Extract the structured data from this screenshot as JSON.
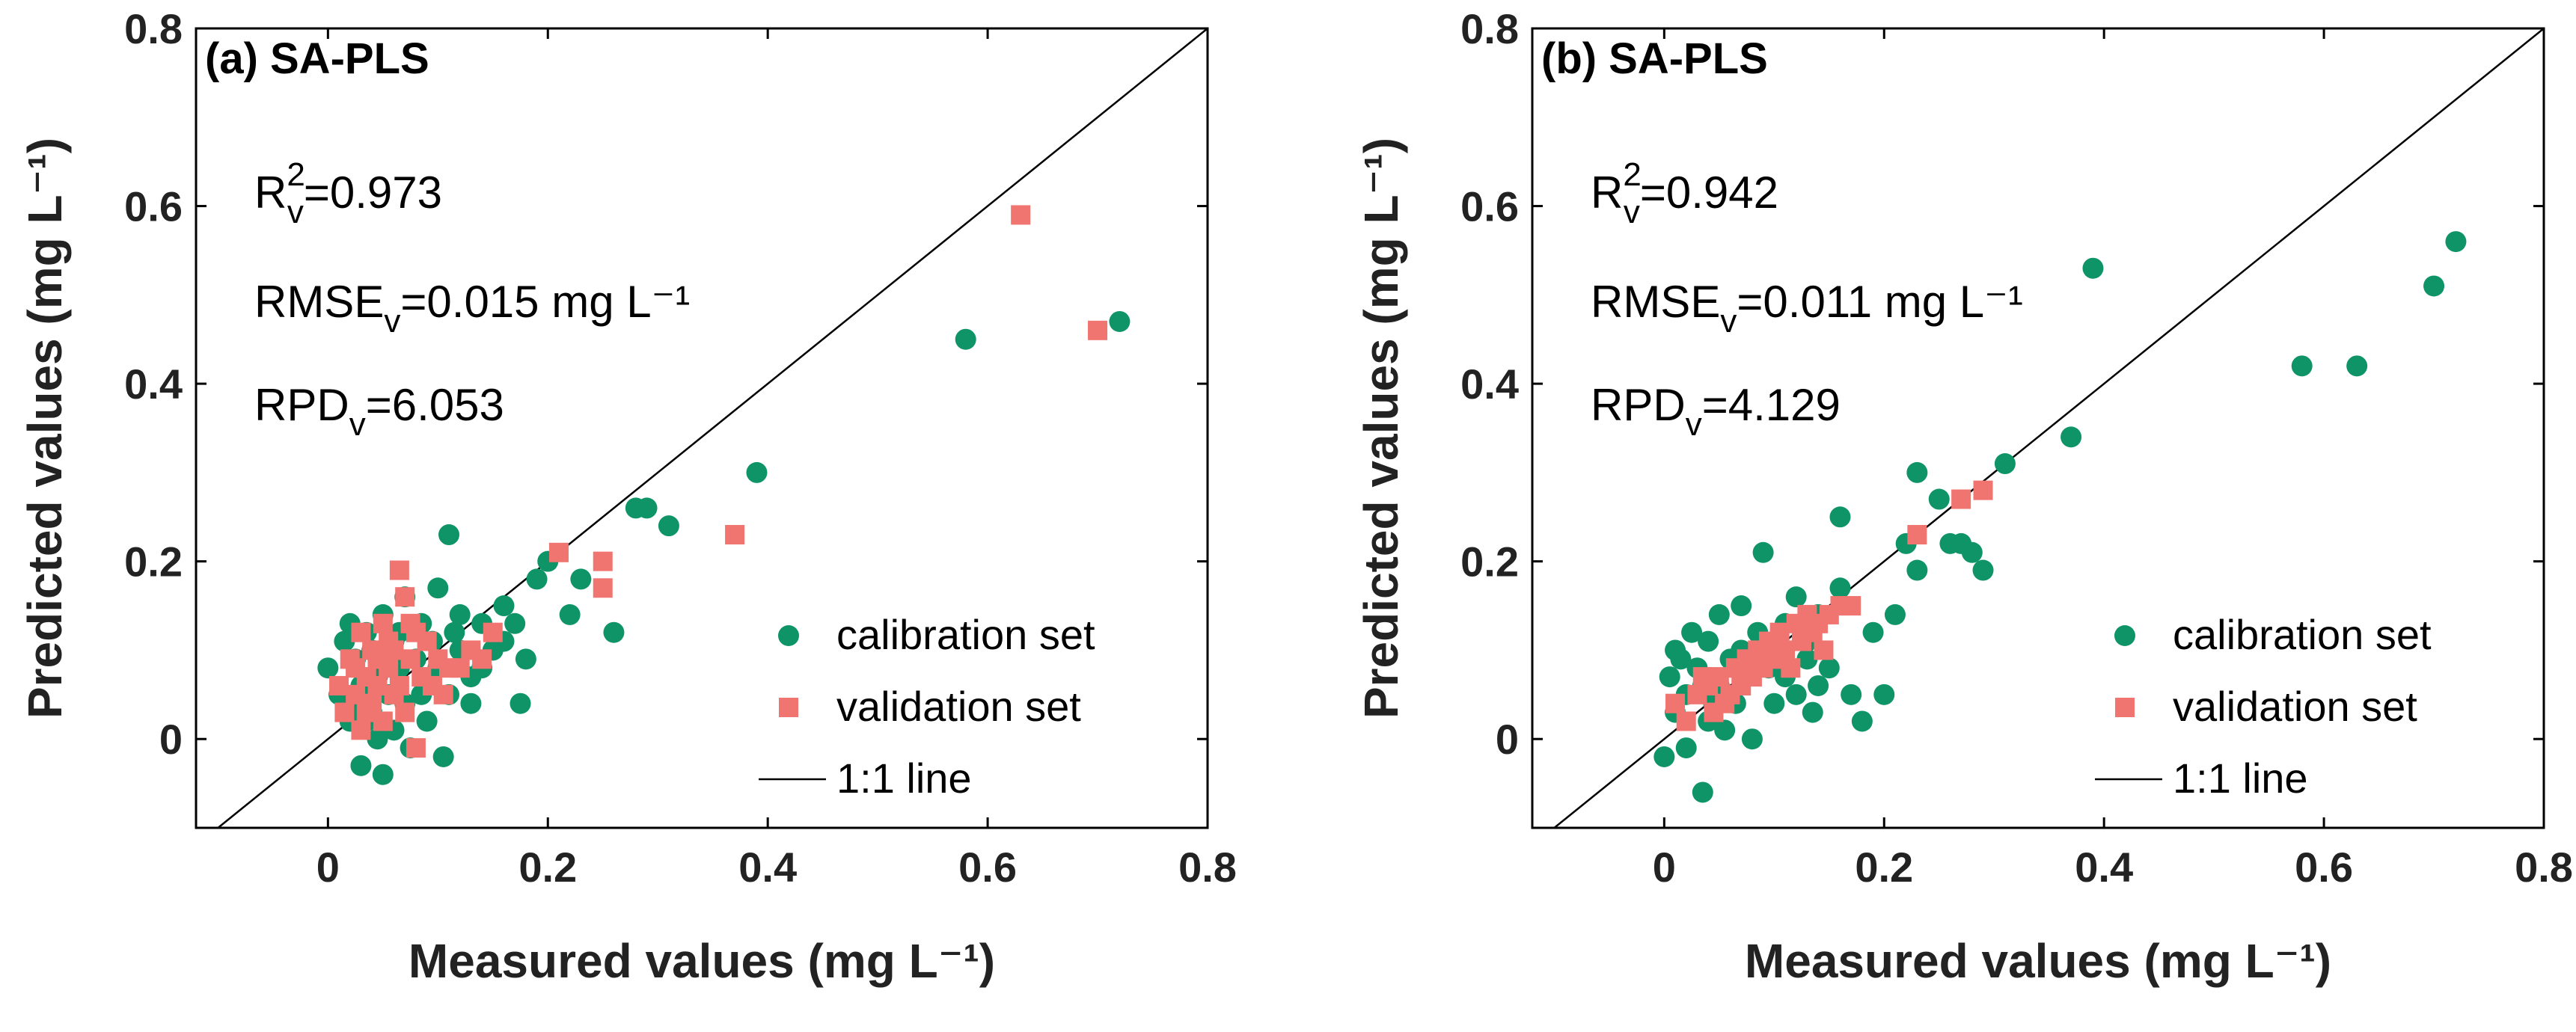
{
  "colors": {
    "calibration": "#0f9467",
    "validation": "#f07470",
    "line": "#000000",
    "frame": "#000000"
  },
  "chart_data": [
    {
      "type": "scatter",
      "title": "(a) SA-PLS",
      "xlabel": "Measured values (mg L⁻¹)",
      "ylabel": "Predicted values (mg L⁻¹)",
      "xlim": [
        -0.12,
        0.8
      ],
      "ylim": [
        -0.1,
        0.8
      ],
      "xticks": [
        0,
        0.2,
        0.4,
        0.6,
        0.8
      ],
      "yticks": [
        0,
        0.2,
        0.4,
        0.6,
        0.8
      ],
      "xtick_labels": [
        "0",
        "0.2",
        "0.4",
        "0.6",
        "0.8"
      ],
      "ytick_labels": [
        "0",
        "0.2",
        "0.4",
        "0.6",
        "0.8"
      ],
      "stats": {
        "r2_main": "R",
        "r2_sup": "2",
        "r2_sub": "v",
        "r2_value": "=0.973",
        "rmse_main": "RMSE",
        "rmse_sub": "v",
        "rmse_value": "=0.015 mg L⁻¹",
        "rpd_main": "RPD",
        "rpd_sub": "v",
        "rpd_value": "=6.053"
      },
      "legend": [
        "calibration set",
        "validation set",
        "1:1 line"
      ],
      "series": [
        {
          "name": "calibration set",
          "marker": "circle",
          "points": [
            [
              0.0,
              0.08
            ],
            [
              0.01,
              0.05
            ],
            [
              0.015,
              0.11
            ],
            [
              0.02,
              0.02
            ],
            [
              0.02,
              0.13
            ],
            [
              0.025,
              0.09
            ],
            [
              0.03,
              0.06
            ],
            [
              0.03,
              -0.03
            ],
            [
              0.035,
              0.12
            ],
            [
              0.04,
              0.03
            ],
            [
              0.04,
              0.1
            ],
            [
              0.045,
              0.07
            ],
            [
              0.05,
              -0.04
            ],
            [
              0.05,
              0.14
            ],
            [
              0.055,
              0.05
            ],
            [
              0.06,
              0.01
            ],
            [
              0.06,
              0.11
            ],
            [
              0.065,
              0.08
            ],
            [
              0.07,
              0.04
            ],
            [
              0.07,
              0.16
            ],
            [
              0.075,
              -0.01
            ],
            [
              0.08,
              0.09
            ],
            [
              0.085,
              0.13
            ],
            [
              0.09,
              0.06
            ],
            [
              0.09,
              0.02
            ],
            [
              0.095,
              0.11
            ],
            [
              0.1,
              0.17
            ],
            [
              0.1,
              0.08
            ],
            [
              0.105,
              -0.02
            ],
            [
              0.11,
              0.05
            ],
            [
              0.11,
              0.23
            ],
            [
              0.115,
              0.12
            ],
            [
              0.12,
              0.1
            ],
            [
              0.12,
              0.14
            ],
            [
              0.13,
              0.07
            ],
            [
              0.13,
              0.04
            ],
            [
              0.14,
              0.13
            ],
            [
              0.15,
              0.1
            ],
            [
              0.16,
              0.15
            ],
            [
              0.17,
              0.13
            ],
            [
              0.175,
              0.04
            ],
            [
              0.18,
              0.09
            ],
            [
              0.19,
              0.18
            ],
            [
              0.2,
              0.2
            ],
            [
              0.22,
              0.14
            ],
            [
              0.23,
              0.18
            ],
            [
              0.26,
              0.12
            ],
            [
              0.28,
              0.26
            ],
            [
              0.29,
              0.26
            ],
            [
              0.31,
              0.24
            ],
            [
              0.39,
              0.3
            ],
            [
              0.58,
              0.45
            ],
            [
              0.72,
              0.47
            ],
            [
              0.035,
              0.02
            ],
            [
              0.045,
              0.0
            ],
            [
              0.025,
              0.04
            ],
            [
              0.065,
              0.12
            ],
            [
              0.085,
              0.05
            ],
            [
              0.14,
              0.08
            ],
            [
              0.16,
              0.11
            ]
          ]
        },
        {
          "name": "validation set",
          "marker": "square",
          "points": [
            [
              0.01,
              0.06
            ],
            [
              0.015,
              0.03
            ],
            [
              0.02,
              0.09
            ],
            [
              0.025,
              0.05
            ],
            [
              0.03,
              0.01
            ],
            [
              0.03,
              0.12
            ],
            [
              0.035,
              0.07
            ],
            [
              0.04,
              0.04
            ],
            [
              0.04,
              0.1
            ],
            [
              0.045,
              0.06
            ],
            [
              0.05,
              0.02
            ],
            [
              0.05,
              0.13
            ],
            [
              0.055,
              0.08
            ],
            [
              0.06,
              0.05
            ],
            [
              0.06,
              0.1
            ],
            [
              0.065,
              0.19
            ],
            [
              0.07,
              0.16
            ],
            [
              0.07,
              0.03
            ],
            [
              0.075,
              0.09
            ],
            [
              0.08,
              -0.01
            ],
            [
              0.08,
              0.12
            ],
            [
              0.085,
              0.07
            ],
            [
              0.09,
              0.11
            ],
            [
              0.095,
              0.06
            ],
            [
              0.1,
              0.09
            ],
            [
              0.105,
              0.05
            ],
            [
              0.11,
              0.08
            ],
            [
              0.12,
              0.08
            ],
            [
              0.13,
              0.1
            ],
            [
              0.14,
              0.09
            ],
            [
              0.15,
              0.12
            ],
            [
              0.21,
              0.21
            ],
            [
              0.25,
              0.2
            ],
            [
              0.25,
              0.17
            ],
            [
              0.37,
              0.23
            ],
            [
              0.63,
              0.59
            ],
            [
              0.7,
              0.46
            ],
            [
              0.025,
              0.08
            ],
            [
              0.035,
              0.03
            ],
            [
              0.055,
              0.11
            ],
            [
              0.065,
              0.06
            ],
            [
              0.045,
              0.09
            ],
            [
              0.075,
              0.13
            ]
          ]
        }
      ]
    },
    {
      "type": "scatter",
      "title": "(b) SA-PLS",
      "xlabel": "Measured values (mg L⁻¹)",
      "ylabel": "Predicted values (mg L⁻¹)",
      "xlim": [
        -0.12,
        0.8
      ],
      "ylim": [
        -0.1,
        0.8
      ],
      "xticks": [
        0,
        0.2,
        0.4,
        0.6,
        0.8
      ],
      "yticks": [
        0,
        0.2,
        0.4,
        0.6,
        0.8
      ],
      "xtick_labels": [
        "0",
        "0.2",
        "0.4",
        "0.6",
        "0.8"
      ],
      "ytick_labels": [
        "0",
        "0.2",
        "0.4",
        "0.6",
        "0.8"
      ],
      "stats": {
        "r2_main": "R",
        "r2_sup": "2",
        "r2_sub": "v",
        "r2_value": "=0.942",
        "rmse_main": "RMSE",
        "rmse_sub": "v",
        "rmse_value": "=0.011 mg L⁻¹",
        "rpd_main": "RPD",
        "rpd_sub": "v",
        "rpd_value": "=4.129"
      },
      "legend": [
        "calibration set",
        "validation set",
        "1:1 line"
      ],
      "series": [
        {
          "name": "calibration set",
          "marker": "circle",
          "points": [
            [
              0.0,
              -0.02
            ],
            [
              0.005,
              0.07
            ],
            [
              0.01,
              0.03
            ],
            [
              0.01,
              0.1
            ],
            [
              0.02,
              0.05
            ],
            [
              0.02,
              -0.01
            ],
            [
              0.025,
              0.12
            ],
            [
              0.03,
              0.08
            ],
            [
              0.035,
              -0.06
            ],
            [
              0.04,
              0.02
            ],
            [
              0.04,
              0.11
            ],
            [
              0.05,
              0.06
            ],
            [
              0.05,
              0.14
            ],
            [
              0.055,
              0.01
            ],
            [
              0.06,
              0.09
            ],
            [
              0.065,
              0.04
            ],
            [
              0.07,
              0.15
            ],
            [
              0.075,
              0.07
            ],
            [
              0.08,
              0.0
            ],
            [
              0.085,
              0.12
            ],
            [
              0.09,
              0.21
            ],
            [
              0.1,
              0.1
            ],
            [
              0.1,
              0.04
            ],
            [
              0.11,
              0.13
            ],
            [
              0.11,
              0.07
            ],
            [
              0.12,
              0.16
            ],
            [
              0.12,
              0.05
            ],
            [
              0.13,
              0.11
            ],
            [
              0.135,
              0.03
            ],
            [
              0.14,
              0.14
            ],
            [
              0.15,
              0.08
            ],
            [
              0.16,
              0.25
            ],
            [
              0.16,
              0.17
            ],
            [
              0.17,
              0.05
            ],
            [
              0.18,
              0.02
            ],
            [
              0.19,
              0.12
            ],
            [
              0.2,
              0.05
            ],
            [
              0.21,
              0.14
            ],
            [
              0.22,
              0.22
            ],
            [
              0.23,
              0.19
            ],
            [
              0.23,
              0.3
            ],
            [
              0.25,
              0.27
            ],
            [
              0.26,
              0.22
            ],
            [
              0.27,
              0.22
            ],
            [
              0.28,
              0.21
            ],
            [
              0.29,
              0.19
            ],
            [
              0.31,
              0.31
            ],
            [
              0.37,
              0.34
            ],
            [
              0.39,
              0.53
            ],
            [
              0.58,
              0.42
            ],
            [
              0.63,
              0.42
            ],
            [
              0.7,
              0.51
            ],
            [
              0.72,
              0.56
            ],
            [
              0.015,
              0.09
            ],
            [
              0.045,
              0.04
            ],
            [
              0.07,
              0.1
            ],
            [
              0.095,
              0.08
            ],
            [
              0.13,
              0.09
            ],
            [
              0.14,
              0.06
            ],
            [
              0.035,
              0.06
            ]
          ]
        },
        {
          "name": "validation set",
          "marker": "square",
          "points": [
            [
              0.01,
              0.04
            ],
            [
              0.02,
              0.02
            ],
            [
              0.03,
              0.05
            ],
            [
              0.04,
              0.06
            ],
            [
              0.045,
              0.03
            ],
            [
              0.05,
              0.07
            ],
            [
              0.06,
              0.05
            ],
            [
              0.065,
              0.08
            ],
            [
              0.07,
              0.06
            ],
            [
              0.075,
              0.09
            ],
            [
              0.08,
              0.07
            ],
            [
              0.085,
              0.1
            ],
            [
              0.09,
              0.08
            ],
            [
              0.095,
              0.11
            ],
            [
              0.1,
              0.09
            ],
            [
              0.105,
              0.12
            ],
            [
              0.11,
              0.1
            ],
            [
              0.12,
              0.13
            ],
            [
              0.125,
              0.11
            ],
            [
              0.13,
              0.14
            ],
            [
              0.135,
              0.12
            ],
            [
              0.14,
              0.13
            ],
            [
              0.15,
              0.14
            ],
            [
              0.16,
              0.15
            ],
            [
              0.17,
              0.15
            ],
            [
              0.23,
              0.23
            ],
            [
              0.27,
              0.27
            ],
            [
              0.29,
              0.28
            ],
            [
              0.055,
              0.04
            ],
            [
              0.035,
              0.07
            ],
            [
              0.115,
              0.08
            ],
            [
              0.145,
              0.1
            ]
          ]
        }
      ]
    }
  ]
}
